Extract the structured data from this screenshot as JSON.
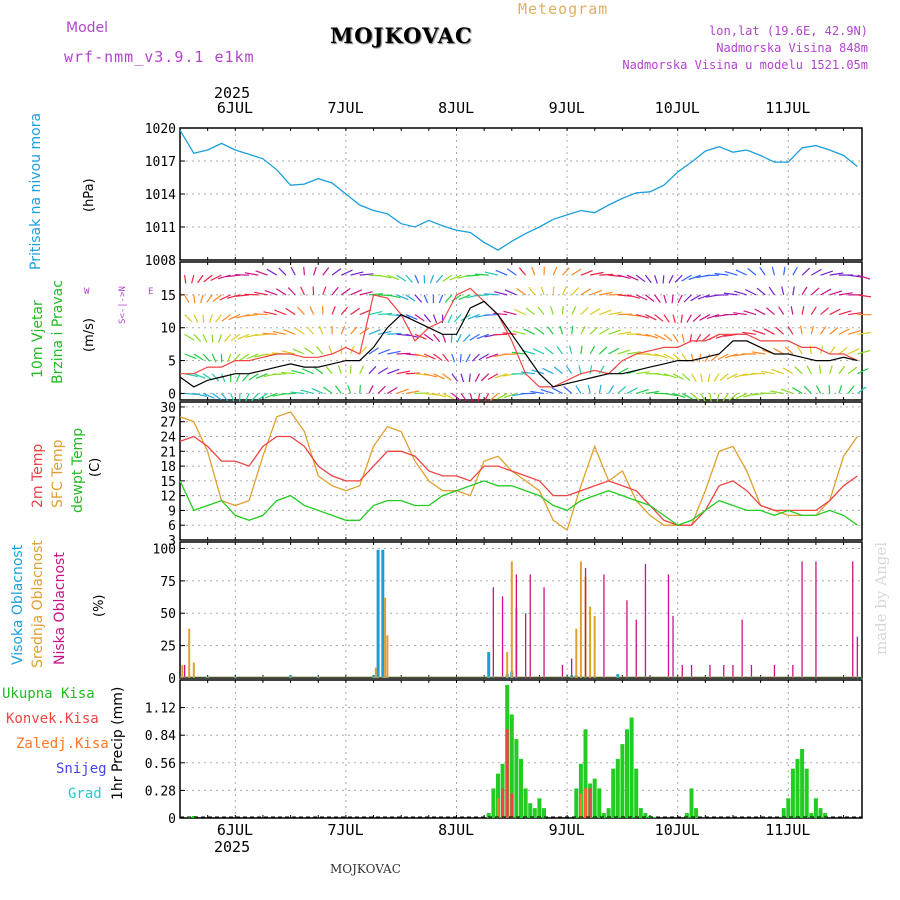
{
  "header": {
    "model_label": "Model",
    "model_name": "wrf-nmm_v3.9.1 e1km",
    "station": "MOJKOVAC",
    "product": "Meteogram",
    "lonlat": "lon,lat (19.6E, 42.9N)",
    "elevation": "Nadmorska Visina 848m",
    "model_elevation": "Nadmorska Visina u modelu 1521.05m"
  },
  "footer": {
    "station": "MOJKOVAC",
    "credit": "made by Angel"
  },
  "time_axis": {
    "year": "2025",
    "day_labels": [
      "6JUL",
      "7JUL",
      "8JUL",
      "9JUL",
      "10JUL",
      "11JUL"
    ],
    "bottom_day_labels": [
      "6JUL",
      "7JUL",
      "8JUL",
      "9JUL",
      "10JUL",
      "11JUL"
    ]
  },
  "wind_compass": {
    "n": "N",
    "s": "S",
    "e": "E",
    "w": "W"
  },
  "colors": {
    "pressure": "#1a9fdd",
    "temp2m": "#ee4444",
    "sfctemp": "#e0a030",
    "dewpt": "#22cc22",
    "high_cloud": "#1a9fdd",
    "mid_cloud": "#e0a030",
    "low_cloud": "#cc1188",
    "total_precip": "#22cc22",
    "conv_precip": "#ee4444",
    "frz_precip": "#ff7722",
    "snow": "#4444ee",
    "graupel": "#22cccc",
    "wind_gust": "#ee4444",
    "wind_mean": "#000000"
  },
  "chart_data": [
    {
      "type": "line",
      "panel": "pressure",
      "ylabel": "Pritisak na nivou mora",
      "unit": "(hPa)",
      "ylim": [
        1008,
        1020
      ],
      "yticks": [
        "1008",
        "1011",
        "1014",
        "1017",
        "1020"
      ],
      "x": [
        0,
        3,
        6,
        9,
        12,
        15,
        18,
        21,
        24,
        27,
        30,
        33,
        36,
        39,
        42,
        45,
        48,
        51,
        54,
        57,
        60,
        63,
        66,
        69,
        72,
        75,
        78,
        81,
        84,
        87,
        90,
        93,
        96,
        99,
        102,
        105,
        108,
        111,
        114,
        117,
        120,
        123,
        126,
        129,
        132,
        135,
        138,
        141,
        144,
        147
      ],
      "series": [
        {
          "values": [
            1019.8,
            1017.7,
            1018.0,
            1018.6,
            1018.0,
            1017.6,
            1017.2,
            1016.2,
            1014.8,
            1014.9,
            1015.4,
            1015.0,
            1014.0,
            1013.0,
            1012.5,
            1012.2,
            1011.3,
            1011.0,
            1011.6,
            1011.1,
            1010.7,
            1010.5,
            1009.6,
            1008.9,
            1009.7,
            1010.4,
            1011.0,
            1011.7,
            1012.1,
            1012.5,
            1012.3,
            1013.0,
            1013.6,
            1014.1,
            1014.2,
            1014.8,
            1016.0,
            1016.9,
            1017.9,
            1018.3,
            1017.8,
            1018.0,
            1017.5,
            1016.9,
            1016.9,
            1018.2,
            1018.4,
            1018.0,
            1017.5,
            1016.5
          ]
        }
      ]
    },
    {
      "type": "line",
      "panel": "wind",
      "ylabel": [
        "10m Vjetar",
        "Brzina i Pravac"
      ],
      "unit": "(m/s)",
      "ylim": [
        -1,
        20
      ],
      "yticks": [
        "0",
        "5",
        "10",
        "15"
      ],
      "x": [
        0,
        3,
        6,
        9,
        12,
        15,
        18,
        21,
        24,
        27,
        30,
        33,
        36,
        39,
        42,
        45,
        48,
        51,
        54,
        57,
        60,
        63,
        66,
        69,
        72,
        75,
        78,
        81,
        84,
        87,
        90,
        93,
        96,
        99,
        102,
        105,
        108,
        111,
        114,
        117,
        120,
        123,
        126,
        129,
        132,
        135,
        138,
        141,
        144,
        147
      ],
      "series": [
        {
          "name": "Gust",
          "values": [
            3,
            3,
            4,
            4,
            5,
            5,
            5.5,
            6,
            6,
            5.5,
            5.5,
            6,
            7,
            6,
            15,
            14.5,
            12,
            8,
            10,
            11,
            15,
            16,
            14,
            12,
            8,
            3,
            1,
            1,
            2,
            3,
            3.5,
            3,
            5,
            6,
            6.5,
            7,
            7,
            8,
            8,
            9,
            9,
            9,
            8,
            8,
            8,
            7,
            7,
            6,
            6,
            5
          ]
        },
        {
          "name": "Mean",
          "values": [
            2.5,
            1,
            2,
            2.5,
            3,
            3,
            3.5,
            4,
            4.5,
            4,
            4,
            4.5,
            5,
            5,
            7,
            10,
            12,
            11,
            10,
            9,
            9,
            13,
            14,
            12,
            9,
            6,
            3,
            1,
            1.5,
            2,
            2.5,
            3,
            3,
            3.5,
            4,
            4.5,
            5,
            5,
            5.5,
            6,
            8,
            8,
            7,
            6,
            6,
            5.5,
            5,
            5,
            5.5,
            5
          ]
        }
      ]
    },
    {
      "type": "line",
      "panel": "temperature",
      "ylabel": [
        "2m Temp",
        "SFC Temp",
        "dewpt Temp"
      ],
      "unit": "(C)",
      "ylim": [
        3,
        31
      ],
      "yticks": [
        "3",
        "6",
        "9",
        "12",
        "15",
        "18",
        "21",
        "24",
        "27",
        "30"
      ],
      "x": [
        0,
        3,
        6,
        9,
        12,
        15,
        18,
        21,
        24,
        27,
        30,
        33,
        36,
        39,
        42,
        45,
        48,
        51,
        54,
        57,
        60,
        63,
        66,
        69,
        72,
        75,
        78,
        81,
        84,
        87,
        90,
        93,
        96,
        99,
        102,
        105,
        108,
        111,
        114,
        117,
        120,
        123,
        126,
        129,
        132,
        135,
        138,
        141,
        144,
        147
      ],
      "series": [
        {
          "name": "2m Temp",
          "values": [
            23,
            24,
            22,
            19,
            19,
            18,
            22,
            24,
            24,
            22,
            18,
            16,
            15,
            15,
            18,
            21,
            21,
            20,
            17,
            16,
            16,
            15,
            18,
            18,
            17,
            16,
            15,
            12,
            12,
            13,
            14,
            15,
            14,
            13,
            10,
            7,
            6,
            6,
            9,
            14,
            15,
            13,
            10,
            9,
            9,
            9,
            9,
            11,
            14,
            16
          ]
        },
        {
          "name": "SFC Temp",
          "values": [
            28,
            27,
            21,
            11,
            10,
            11,
            20,
            28,
            29,
            25,
            16,
            14,
            13,
            14,
            22,
            26,
            25,
            19,
            15,
            13,
            13,
            12,
            19,
            20,
            17,
            15,
            13,
            7,
            5,
            14,
            22,
            15,
            17,
            11,
            8,
            6,
            6,
            6,
            13,
            21,
            22,
            17,
            10,
            9,
            8,
            8,
            8,
            11,
            20,
            24
          ]
        },
        {
          "name": "dewpt Temp",
          "values": [
            15,
            9,
            10,
            11,
            8,
            7,
            8,
            11,
            12,
            10,
            9,
            8,
            7,
            7,
            10,
            11,
            11,
            10,
            10,
            12,
            13,
            14,
            15,
            14,
            14,
            13,
            12,
            10,
            9,
            11,
            12,
            13,
            12,
            11,
            10,
            8,
            6,
            7,
            9,
            11,
            10,
            9,
            9,
            8,
            9,
            8,
            8,
            9,
            8,
            6
          ]
        }
      ]
    },
    {
      "type": "bar",
      "panel": "clouds",
      "ylabel": [
        "Visoka Oblacnost",
        "Srednja Oblacnost",
        "Niska Oblacnost"
      ],
      "unit": "(%)",
      "ylim": [
        0,
        105
      ],
      "yticks": [
        "0",
        "25",
        "50",
        "75",
        "100"
      ],
      "series": [
        {
          "name": "Visoka Oblacnost",
          "x": [
            6,
            12,
            24,
            30,
            42,
            43,
            44,
            67,
            71,
            72,
            85,
            86,
            95
          ],
          "values": [
            1,
            1,
            2,
            1,
            2,
            99,
            99,
            20,
            3,
            5,
            2,
            2,
            3
          ]
        },
        {
          "name": "Srednja Oblacnost",
          "x": [
            0.5,
            2,
            3,
            42.5,
            44.5,
            45,
            71,
            72,
            73,
            86,
            87,
            88,
            89,
            90
          ],
          "values": [
            10,
            38,
            12,
            8,
            62,
            33,
            20,
            90,
            54,
            38,
            90,
            78,
            55,
            48
          ]
        },
        {
          "name": "Niska Oblacnost",
          "x": [
            1,
            68,
            70,
            73,
            75,
            76,
            79,
            83,
            85,
            88,
            92,
            97,
            99,
            101,
            106,
            107,
            109,
            111,
            115,
            118,
            120,
            122,
            124,
            129,
            133,
            135,
            138,
            146,
            147
          ],
          "values": [
            10,
            70,
            63,
            80,
            50,
            80,
            70,
            10,
            15,
            85,
            80,
            60,
            45,
            88,
            80,
            48,
            10,
            10,
            10,
            10,
            10,
            45,
            10,
            10,
            10,
            90,
            90,
            90,
            32
          ]
        }
      ]
    },
    {
      "type": "bar",
      "panel": "precipitation",
      "ylabel": "1hr Precip",
      "unit": "(mm)",
      "legend": [
        "Ukupna Kisa",
        "Konvek.Kisa",
        "Zaledj.Kisa",
        "Snijeg",
        "Grad"
      ],
      "ylim": [
        0,
        1.4
      ],
      "yticks": [
        "0",
        "0.28",
        "0.56",
        "0.84",
        "1.12"
      ],
      "series": [
        {
          "name": "Ukupna Kisa",
          "x": [
            2,
            3,
            67,
            68,
            69,
            70,
            71,
            72,
            73,
            74,
            75,
            76,
            77,
            78,
            79,
            86,
            87,
            88,
            89,
            90,
            91,
            92,
            93,
            94,
            95,
            96,
            97,
            98,
            99,
            100,
            101,
            102,
            103,
            110,
            111,
            112,
            131,
            132,
            133,
            134,
            135,
            136,
            137,
            138,
            139,
            140
          ],
          "values": [
            0.01,
            0.02,
            0.05,
            0.3,
            0.45,
            0.55,
            1.35,
            1.05,
            0.8,
            0.6,
            0.3,
            0.15,
            0.1,
            0.2,
            0.1,
            0.3,
            0.55,
            0.9,
            0.35,
            0.4,
            0.3,
            0.05,
            0.1,
            0.5,
            0.6,
            0.75,
            0.9,
            1.02,
            0.5,
            0.1,
            0.05,
            0.02,
            0.01,
            0.05,
            0.3,
            0.1,
            0.1,
            0.2,
            0.5,
            0.6,
            0.7,
            0.5,
            0.05,
            0.2,
            0.1,
            0.05
          ]
        },
        {
          "name": "Konvek.Kisa",
          "x": [
            70,
            71,
            72,
            88,
            89
          ],
          "values": [
            0.3,
            0.9,
            0.25,
            0.3,
            0.3
          ]
        },
        {
          "name": "Zaledj.Kisa",
          "x": [
            69,
            87,
            88
          ],
          "values": [
            0.2,
            0.25,
            0.3
          ]
        }
      ]
    }
  ]
}
